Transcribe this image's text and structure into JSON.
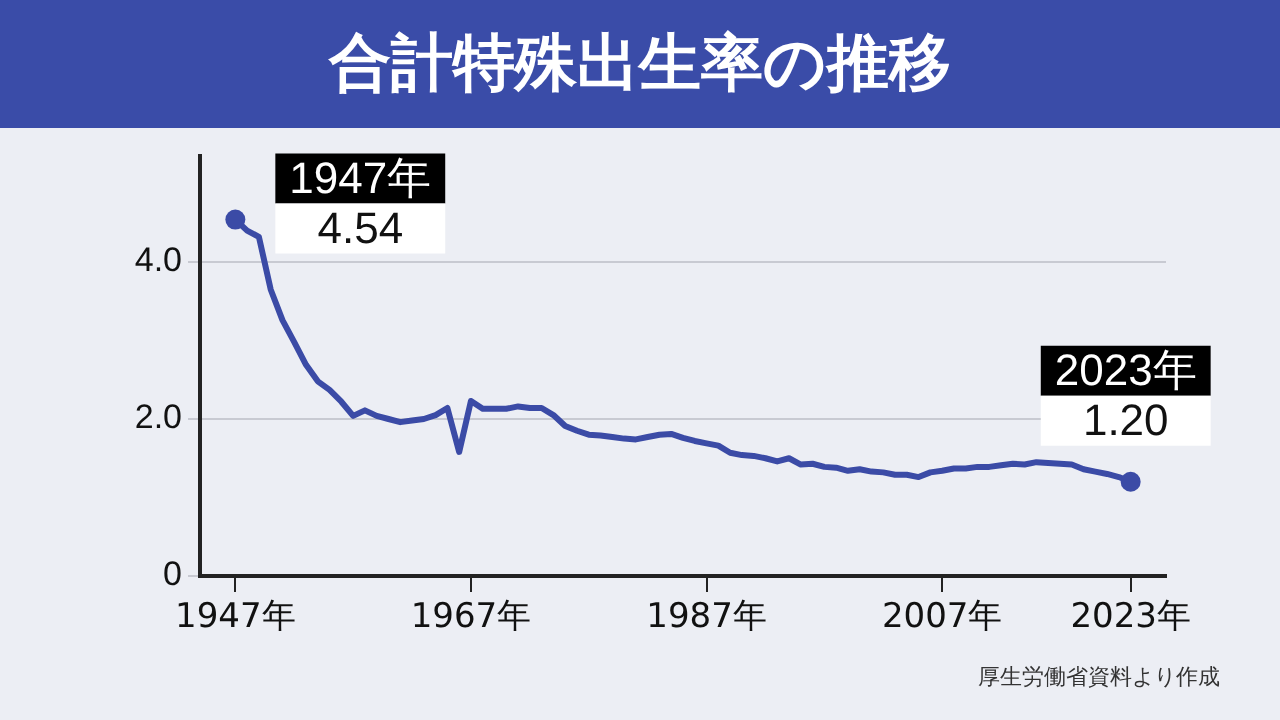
{
  "chart_data": {
    "type": "line",
    "title": "合計特殊出生率の推移",
    "x": [
      1947,
      1948,
      1949,
      1950,
      1951,
      1952,
      1953,
      1954,
      1955,
      1956,
      1957,
      1958,
      1959,
      1960,
      1961,
      1962,
      1963,
      1964,
      1965,
      1966,
      1967,
      1968,
      1969,
      1970,
      1971,
      1972,
      1973,
      1974,
      1975,
      1976,
      1977,
      1978,
      1979,
      1980,
      1981,
      1982,
      1983,
      1984,
      1985,
      1986,
      1987,
      1988,
      1989,
      1990,
      1991,
      1992,
      1993,
      1994,
      1995,
      1996,
      1997,
      1998,
      1999,
      2000,
      2001,
      2002,
      2003,
      2004,
      2005,
      2006,
      2007,
      2008,
      2009,
      2010,
      2011,
      2012,
      2013,
      2014,
      2015,
      2016,
      2017,
      2018,
      2019,
      2020,
      2021,
      2022,
      2023
    ],
    "series": [
      {
        "color": "#3b4ba6",
        "values": [
          4.54,
          4.4,
          4.32,
          3.65,
          3.26,
          2.98,
          2.69,
          2.48,
          2.37,
          2.22,
          2.04,
          2.11,
          2.04,
          2.0,
          1.96,
          1.98,
          2.0,
          2.05,
          2.14,
          1.58,
          2.23,
          2.13,
          2.13,
          2.13,
          2.16,
          2.14,
          2.14,
          2.05,
          1.91,
          1.85,
          1.8,
          1.79,
          1.77,
          1.75,
          1.74,
          1.77,
          1.8,
          1.81,
          1.76,
          1.72,
          1.69,
          1.66,
          1.57,
          1.54,
          1.53,
          1.5,
          1.46,
          1.5,
          1.42,
          1.43,
          1.39,
          1.38,
          1.34,
          1.36,
          1.33,
          1.32,
          1.29,
          1.29,
          1.26,
          1.32,
          1.34,
          1.37,
          1.37,
          1.39,
          1.39,
          1.41,
          1.43,
          1.42,
          1.45,
          1.44,
          1.43,
          1.42,
          1.36,
          1.33,
          1.3,
          1.26,
          1.2
        ]
      }
    ],
    "xlim": [
      1944,
      2026
    ],
    "xticks": [
      {
        "value": 1947,
        "label": "1947年"
      },
      {
        "value": 1967,
        "label": "1967年"
      },
      {
        "value": 1987,
        "label": "1987年"
      },
      {
        "value": 2007,
        "label": "2007年"
      },
      {
        "value": 2023,
        "label": "2023年"
      }
    ],
    "ylim": [
      0,
      5.35
    ],
    "yticks": [
      0,
      {
        "value": 2,
        "label": "2.0"
      },
      {
        "value": 4,
        "label": "4.0"
      }
    ],
    "grid": "y",
    "legend": false,
    "annotations": [
      {
        "text": "1947年\n4.54",
        "x": 1947,
        "y": 4.54
      },
      {
        "text": "2023年\n1.20",
        "x": 2023,
        "y": 1.2
      },
      "厚生労働省資料より作成"
    ]
  }
}
